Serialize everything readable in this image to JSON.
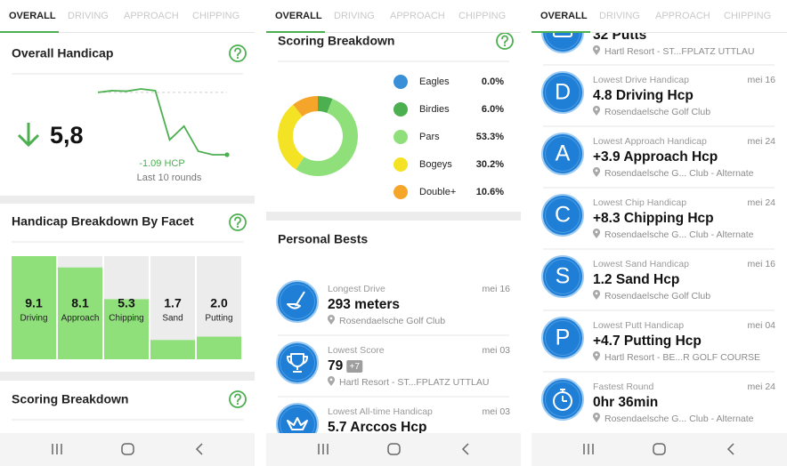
{
  "screens": [
    {
      "tabs": [
        "OVERALL",
        "DRIVING",
        "APPROACH",
        "CHIPPING"
      ],
      "overall_handicap": {
        "title": "Overall Handicap",
        "value": "5,8",
        "change": "-1.09 HCP",
        "caption": "Last 10 rounds",
        "trend": [
          6.89,
          6.92,
          6.91,
          6.95,
          6.92,
          6.06,
          6.3,
          5.86,
          5.8,
          5.8
        ],
        "color": "#4caf50"
      },
      "facet_breakdown": {
        "title": "Handicap Breakdown By Facet",
        "categories": [
          "Driving",
          "Approach",
          "Chipping",
          "Sand",
          "Putting"
        ],
        "values": [
          9.1,
          8.1,
          5.3,
          1.7,
          2.0
        ],
        "value_labels": [
          "9.1",
          "8.1",
          "5.3",
          "1.7",
          "2.0"
        ],
        "color": "#8fe07b"
      },
      "next_section": "Scoring Breakdown"
    },
    {
      "tabs": [
        "OVERALL",
        "DRIVING",
        "APPROACH",
        "CHIPPING"
      ],
      "scoring_breakdown": {
        "title": "Scoring Breakdown",
        "categories": [
          "Eagles",
          "Birdies",
          "Pars",
          "Bogeys",
          "Double+"
        ],
        "values": [
          0.0,
          6.0,
          53.3,
          30.2,
          10.6
        ],
        "value_labels": [
          "0.0%",
          "6.0%",
          "53.3%",
          "30.2%",
          "10.6%"
        ],
        "colors": [
          "#3a8fd9",
          "#4caf50",
          "#8fe07b",
          "#f4e325",
          "#f5a52a"
        ]
      },
      "personal_bests": {
        "title": "Personal Bests",
        "items": [
          {
            "label": "Longest Drive",
            "date": "mei 16",
            "value": "293 meters",
            "location": "Rosendaelsche Golf Club"
          },
          {
            "label": "Lowest Score",
            "date": "mei 03",
            "value": "79",
            "badge": "+7",
            "location": "Hartl Resort - ST...FPLATZ UTTLAU"
          },
          {
            "label": "Lowest All-time Handicap",
            "date": "mei 03",
            "value": "5.7 Arccos Hcp"
          }
        ]
      }
    },
    {
      "tabs": [
        "OVERALL",
        "DRIVING",
        "APPROACH",
        "CHIPPING"
      ],
      "items": [
        {
          "value": "32 Putts",
          "location": "Hartl Resort - ST...FPLATZ UTTLAU"
        },
        {
          "letter": "D",
          "label": "Lowest Drive Handicap",
          "date": "mei 16",
          "value": "4.8 Driving Hcp",
          "location": "Rosendaelsche Golf Club"
        },
        {
          "letter": "A",
          "label": "Lowest Approach Handicap",
          "date": "mei 24",
          "value": "+3.9 Approach Hcp",
          "location": "Rosendaelsche G... Club - Alternate"
        },
        {
          "letter": "C",
          "label": "Lowest Chip Handicap",
          "date": "mei 24",
          "value": "+8.3 Chipping Hcp",
          "location": "Rosendaelsche G... Club - Alternate"
        },
        {
          "letter": "S",
          "label": "Lowest Sand Handicap",
          "date": "mei 16",
          "value": "1.2 Sand Hcp",
          "location": "Rosendaelsche Golf Club"
        },
        {
          "letter": "P",
          "label": "Lowest Putt Handicap",
          "date": "mei 04",
          "value": "+4.7 Putting Hcp",
          "location": "Hartl Resort - BE...R GOLF COURSE"
        },
        {
          "label": "Fastest Round",
          "date": "mei 24",
          "value": "0hr 36min",
          "location": "Rosendaelsche G... Club - Alternate"
        }
      ]
    }
  ]
}
